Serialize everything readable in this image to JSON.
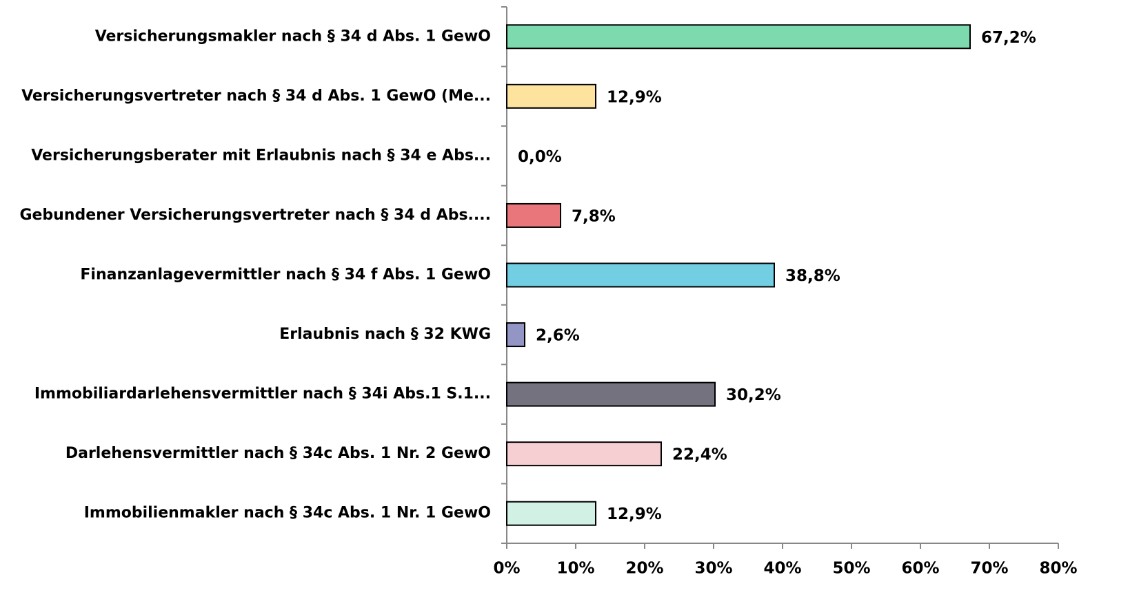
{
  "chart_data": {
    "type": "barh",
    "categories": [
      "Versicherungsmakler nach § 34 d Abs. 1 GewO",
      "Versicherungsvertreter nach § 34 d Abs. 1 GewO (Me...",
      "Versicherungsberater mit Erlaubnis nach § 34 e Abs...",
      "Gebundener Versicherungsvertreter nach § 34 d Abs....",
      "Finanzanlagevermittler nach § 34 f Abs. 1 GewO",
      "Erlaubnis nach § 32 KWG",
      "Immobiliardarlehensvermittler nach § 34i Abs.1 S.1...",
      "Darlehensvermittler nach § 34c Abs. 1 Nr. 2 GewO",
      "Immobilienmakler nach § 34c Abs. 1 Nr. 1 GewO"
    ],
    "values": [
      67.2,
      12.9,
      0.0,
      7.8,
      38.8,
      2.6,
      30.2,
      22.4,
      12.9
    ],
    "value_labels": [
      "67,2%",
      "12,9%",
      "0,0%",
      "7,8%",
      "38,8%",
      "2,6%",
      "30,2%",
      "22,4%",
      "12,9%"
    ],
    "colors": [
      "#7dd9ae",
      "#fde39e",
      "#c9a0dc",
      "#e8767a",
      "#72cfe3",
      "#9396c4",
      "#74727f",
      "#f6cfd3",
      "#d2f1e5"
    ],
    "xlim": [
      0,
      80
    ],
    "xticks": [
      {
        "value": 0,
        "label": "0%"
      },
      {
        "value": 10,
        "label": "10%"
      },
      {
        "value": 20,
        "label": "20%"
      },
      {
        "value": 30,
        "label": "30%"
      },
      {
        "value": 40,
        "label": "40%"
      },
      {
        "value": 50,
        "label": "50%"
      },
      {
        "value": 60,
        "label": "60%"
      },
      {
        "value": 70,
        "label": "70%"
      },
      {
        "value": 80,
        "label": "80%"
      }
    ],
    "grid": false
  }
}
